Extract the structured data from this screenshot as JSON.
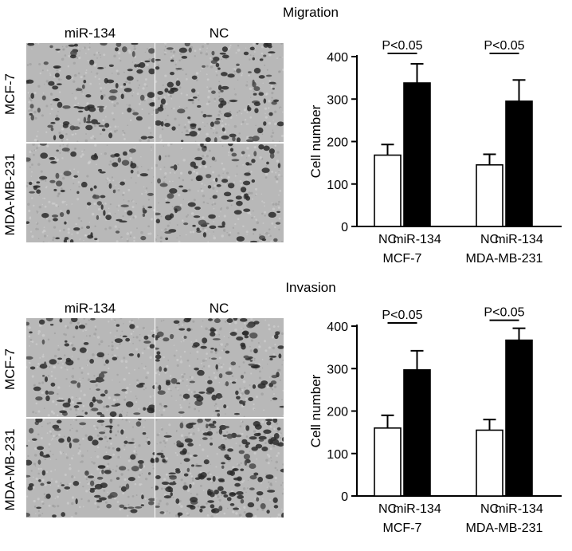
{
  "panels": [
    {
      "title": "Migration",
      "images": {
        "columns": [
          "miR-134",
          "NC"
        ],
        "rows": [
          "MCF-7",
          "MDA-MB-231"
        ]
      }
    },
    {
      "title": "Invasion",
      "images": {
        "columns": [
          "miR-134",
          "NC"
        ],
        "rows": [
          "MCF-7",
          "MDA-MB-231"
        ]
      }
    }
  ],
  "chart_data": [
    {
      "type": "bar",
      "ylabel": "Cell number",
      "ylim": [
        0,
        400
      ],
      "yticks": [
        0,
        100,
        200,
        300,
        400
      ],
      "groups": [
        "MCF-7",
        "MDA-MB-231"
      ],
      "bar_labels": [
        "NC",
        "miR-134"
      ],
      "series": [
        {
          "name": "NC",
          "color": "#ffffff",
          "values": [
            168,
            145
          ],
          "errors": [
            25,
            25
          ]
        },
        {
          "name": "miR-134",
          "color": "#000000",
          "values": [
            338,
            295
          ],
          "errors": [
            45,
            50
          ]
        }
      ],
      "annotations": [
        "P<0.05",
        "P<0.05"
      ]
    },
    {
      "type": "bar",
      "ylabel": "Cell number",
      "ylim": [
        0,
        400
      ],
      "yticks": [
        0,
        100,
        200,
        300,
        400
      ],
      "groups": [
        "MCF-7",
        "MDA-MB-231"
      ],
      "bar_labels": [
        "NC",
        "miR-134"
      ],
      "series": [
        {
          "name": "NC",
          "color": "#ffffff",
          "values": [
            160,
            155
          ],
          "errors": [
            30,
            25
          ]
        },
        {
          "name": "miR-134",
          "color": "#000000",
          "values": [
            297,
            367
          ],
          "errors": [
            45,
            28
          ]
        }
      ],
      "annotations": [
        "P<0.05",
        "P<0.05"
      ]
    }
  ]
}
